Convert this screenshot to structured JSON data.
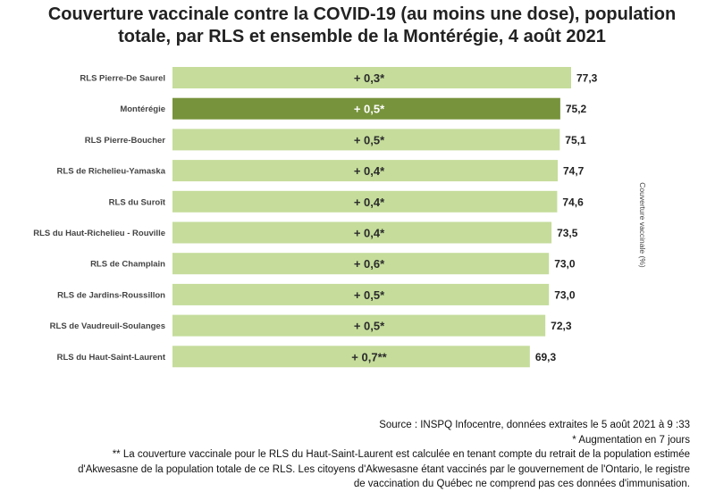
{
  "header": {
    "title_line1": "Couverture vaccinale contre la COVID-19 (au moins une dose), population",
    "title_line2": "totale, par RLS et ensemble de la Montérégie, 4 août 2021"
  },
  "chart_data": {
    "type": "bar",
    "orientation": "horizontal",
    "title": "Couverture vaccinale contre la COVID-19 (au moins une dose), population totale, par RLS et ensemble de la Montérégie, 4 août 2021",
    "ylabel": "Couverture vaccinale (%)",
    "categories": [
      "RLS Pierre-De Saurel",
      "Montérégie",
      "RLS Pierre-Boucher",
      "RLS de Richelieu-Yamaska",
      "RLS du Suroît",
      "RLS du Haut-Richelieu - Rouville",
      "RLS de Champlain",
      "RLS de Jardins-Roussillon",
      "RLS de Vaudreuil-Soulanges",
      "RLS du Haut-Saint-Laurent"
    ],
    "values": [
      77.3,
      75.2,
      75.1,
      74.7,
      74.6,
      73.5,
      73.0,
      73.0,
      72.3,
      69.3
    ],
    "value_labels": [
      "77,3",
      "75,2",
      "75,1",
      "74,7",
      "74,6",
      "73,5",
      "73,0",
      "73,0",
      "72,3",
      "69,3"
    ],
    "change_labels": [
      "+ 0,3*",
      "+ 0,5*",
      "+ 0,5*",
      "+ 0,4*",
      "+ 0,4*",
      "+ 0,4*",
      "+ 0,6*",
      "+ 0,5*",
      "+ 0,5*",
      "+ 0,7**"
    ],
    "highlight_index": 1,
    "xlim": [
      0,
      100
    ],
    "grid": false,
    "colors": {
      "bar": "#c5dc9b",
      "highlight": "#77933c",
      "highlight_text": "#ffffff"
    }
  },
  "footer": {
    "source": "Source : INSPQ Infocentre, données extraites le 5 août 2021 à 9 :33",
    "note1": "* Augmentation en 7 jours",
    "note2_line1": "** La couverture vaccinale pour le RLS du Haut-Saint-Laurent est calculée en tenant compte du retrait de la population estimée",
    "note2_line2": "d'Akwesasne de la population totale de ce RLS. Les citoyens d'Akwesasne étant vaccinés par le gouvernement de l'Ontario, le registre",
    "note2_line3": "de vaccination du Québec ne comprend pas ces données d'immunisation."
  }
}
